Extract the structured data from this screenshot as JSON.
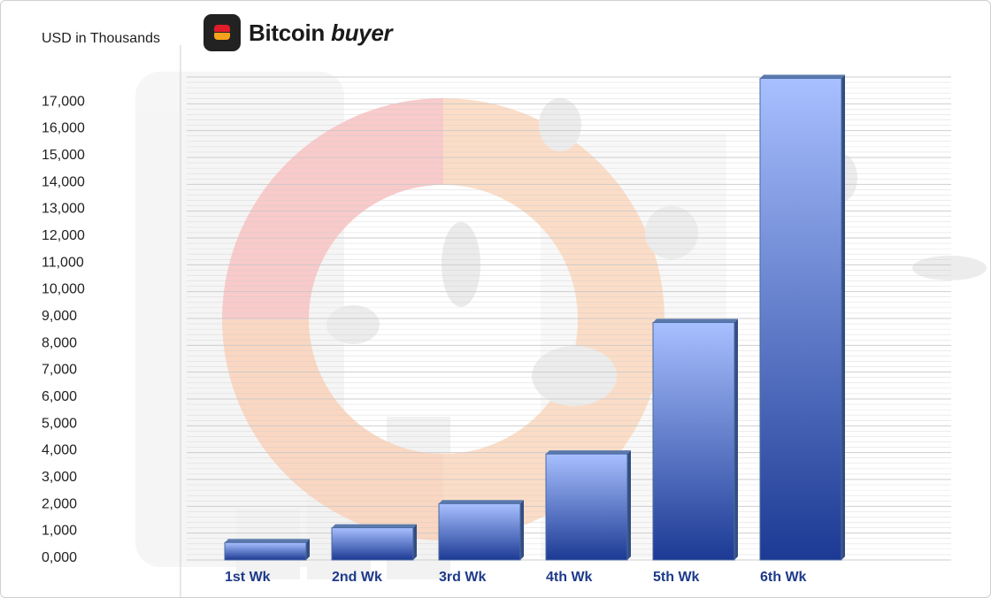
{
  "brand": {
    "name_part1": "Bitcoin",
    "name_part2": "buyer",
    "logo_icon": "bitcoin-buyer-logo-icon",
    "logo_colors": {
      "background": "#222222",
      "top": "#e11d2a",
      "bottom": "#f7a21b"
    }
  },
  "chart_data": {
    "type": "bar",
    "title": "",
    "xlabel": "",
    "ylabel": "USD in Thousands",
    "categories": [
      "1st Wk",
      "2nd Wk",
      "3rd Wk",
      "4th Wk",
      "5th Wk",
      "6th Wk"
    ],
    "values": [
      650,
      1200,
      2100,
      3950,
      8850,
      17950
    ],
    "ylim": [
      0,
      18000
    ],
    "yticks": [
      0,
      1000,
      2000,
      3000,
      4000,
      5000,
      6000,
      7000,
      8000,
      9000,
      10000,
      11000,
      12000,
      13000,
      14000,
      15000,
      16000,
      17000
    ],
    "ytick_labels": [
      "0,000",
      "1,000",
      "2,000",
      "3,000",
      "4,000",
      "5,000",
      "6,000",
      "7,000",
      "8,000",
      "9,000",
      "10,000",
      "11,000",
      "12,000",
      "13,000",
      "14,000",
      "15,000",
      "16,000",
      "17,000"
    ],
    "grid": true,
    "legend": "none",
    "colors": {
      "bar_top": "#a8c0ff",
      "bar_bottom": "#1c3a94",
      "bar_edge": "#4a6aa0",
      "category_text": "#1e3a8a",
      "grid": "#c9c9c9"
    }
  }
}
